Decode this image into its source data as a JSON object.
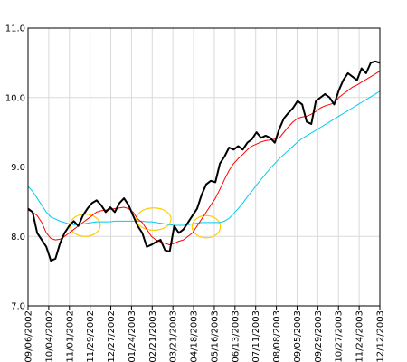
{
  "chart_data": {
    "type": "line",
    "title": "",
    "xlabel": "",
    "ylabel": "",
    "ylim": [
      7.0,
      11.0
    ],
    "grid": true,
    "y_ticks": [
      "7.0",
      "8.0",
      "9.0",
      "10.0",
      "11.0"
    ],
    "x_ticks": [
      "09/06/2002",
      "10/04/2002",
      "11/01/2002",
      "11/29/2002",
      "12/27/2002",
      "01/24/2003",
      "02/21/2003",
      "03/21/2003",
      "04/18/2003",
      "05/16/2003",
      "06/13/2003",
      "07/11/2003",
      "08/08/2003",
      "09/05/2003",
      "09/29/2003",
      "10/27/2003",
      "11/24/2003",
      "12/12/2003"
    ],
    "series": [
      {
        "color": "#000000",
        "values": [
          8.4,
          8.35,
          8.05,
          7.95,
          7.85,
          7.65,
          7.68,
          7.9,
          8.05,
          8.15,
          8.22,
          8.15,
          8.3,
          8.4,
          8.48,
          8.52,
          8.45,
          8.35,
          8.42,
          8.35,
          8.48,
          8.55,
          8.45,
          8.3,
          8.15,
          8.05,
          7.85,
          7.88,
          7.92,
          7.95,
          7.8,
          7.78,
          8.15,
          8.05,
          8.1,
          8.2,
          8.3,
          8.4,
          8.6,
          8.75,
          8.8,
          8.78,
          9.05,
          9.15,
          9.28,
          9.25,
          9.3,
          9.25,
          9.35,
          9.4,
          9.5,
          9.42,
          9.45,
          9.42,
          9.35,
          9.55,
          9.7,
          9.78,
          9.85,
          9.95,
          9.9,
          9.65,
          9.62,
          9.95,
          10.0,
          10.05,
          10.0,
          9.9,
          10.1,
          10.25,
          10.35,
          10.3,
          10.25,
          10.42,
          10.35,
          10.5,
          10.52,
          10.5
        ]
      },
      {
        "color": "#ff0000",
        "values": [
          8.38,
          8.35,
          8.3,
          8.2,
          8.05,
          7.97,
          7.95,
          7.96,
          8.0,
          8.05,
          8.1,
          8.15,
          8.2,
          8.25,
          8.3,
          8.35,
          8.37,
          8.38,
          8.39,
          8.4,
          8.41,
          8.42,
          8.4,
          8.35,
          8.25,
          8.2,
          8.1,
          8.0,
          7.95,
          7.92,
          7.9,
          7.88,
          7.9,
          7.93,
          7.95,
          8.0,
          8.05,
          8.15,
          8.25,
          8.35,
          8.45,
          8.55,
          8.68,
          8.82,
          8.95,
          9.05,
          9.12,
          9.18,
          9.25,
          9.3,
          9.33,
          9.36,
          9.38,
          9.39,
          9.4,
          9.42,
          9.5,
          9.58,
          9.65,
          9.7,
          9.72,
          9.73,
          9.76,
          9.8,
          9.85,
          9.88,
          9.9,
          9.92,
          10.0,
          10.05,
          10.1,
          10.15,
          10.18,
          10.22,
          10.26,
          10.3,
          10.34,
          10.38
        ]
      },
      {
        "color": "#00ccee",
        "values": [
          8.72,
          8.65,
          8.55,
          8.45,
          8.35,
          8.28,
          8.25,
          8.22,
          8.2,
          8.18,
          8.17,
          8.17,
          8.18,
          8.19,
          8.2,
          8.21,
          8.21,
          8.21,
          8.21,
          8.22,
          8.22,
          8.22,
          8.22,
          8.22,
          8.22,
          8.22,
          8.21,
          8.21,
          8.2,
          8.19,
          8.18,
          8.17,
          8.16,
          8.16,
          8.16,
          8.17,
          8.18,
          8.19,
          8.2,
          8.2,
          8.2,
          8.2,
          8.2,
          8.22,
          8.26,
          8.33,
          8.4,
          8.48,
          8.57,
          8.65,
          8.74,
          8.82,
          8.9,
          8.98,
          9.05,
          9.12,
          9.18,
          9.24,
          9.3,
          9.36,
          9.41,
          9.45,
          9.49,
          9.53,
          9.57,
          9.61,
          9.65,
          9.69,
          9.73,
          9.77,
          9.81,
          9.85,
          9.89,
          9.93,
          9.97,
          10.01,
          10.05,
          10.09
        ]
      }
    ],
    "annotations": [
      {
        "shape": "ellipse",
        "color": "#ffcc00",
        "center_x_index": 12.5,
        "center_y": 8.16,
        "rx_points": 3.3,
        "ry_value": 0.16
      },
      {
        "shape": "ellipse",
        "color": "#ffcc00",
        "center_x_index": 27.5,
        "center_y": 8.25,
        "rx_points": 3.8,
        "ry_value": 0.16
      },
      {
        "shape": "ellipse",
        "color": "#ffcc00",
        "center_x_index": 39.0,
        "center_y": 8.14,
        "rx_points": 3.1,
        "ry_value": 0.16
      }
    ]
  }
}
